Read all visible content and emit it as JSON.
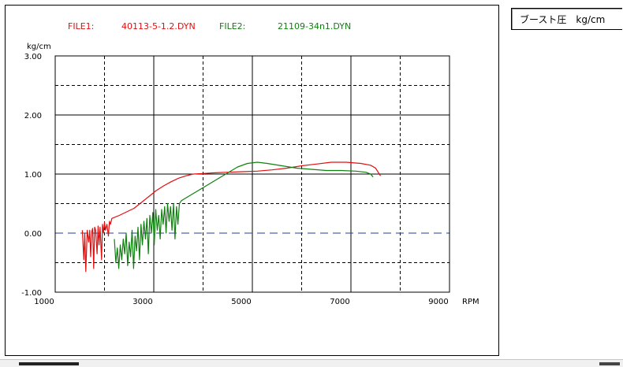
{
  "legend": {
    "file1_label": "FILE1:",
    "file1_name": "40113-5-1.2.DYN",
    "file2_label": "FILE2:",
    "file2_name": "21109-34n1.DYN"
  },
  "side_label": "ブースト圧　kg/cm",
  "chart_data": {
    "type": "line",
    "ylabel": "kg/cm",
    "xlabel": "RPM",
    "xlim": [
      1000,
      9000
    ],
    "ylim": [
      -1.0,
      3.0
    ],
    "x_ticks": [
      "1000",
      "3000",
      "5000",
      "7000",
      "9000"
    ],
    "y_ticks": [
      "3.00",
      "2.00",
      "1.00",
      "0.00",
      "-1.00"
    ],
    "grid": true,
    "zero_line_color": "#1f3fa0",
    "series": [
      {
        "name": "40113-5-1.2.DYN",
        "color": "#e01010",
        "points": [
          [
            1550,
            0.05
          ],
          [
            1580,
            -0.45
          ],
          [
            1600,
            0.0
          ],
          [
            1620,
            -0.65
          ],
          [
            1650,
            0.05
          ],
          [
            1680,
            -0.15
          ],
          [
            1700,
            0.05
          ],
          [
            1720,
            -0.4
          ],
          [
            1740,
            0.02
          ],
          [
            1760,
            0.08
          ],
          [
            1780,
            -0.6
          ],
          [
            1800,
            0.1
          ],
          [
            1820,
            0.05
          ],
          [
            1850,
            -0.35
          ],
          [
            1870,
            0.12
          ],
          [
            1890,
            -0.2
          ],
          [
            1910,
            0.1
          ],
          [
            1940,
            -0.45
          ],
          [
            1960,
            0.15
          ],
          [
            1980,
            0.0
          ],
          [
            2000,
            0.18
          ],
          [
            2020,
            0.05
          ],
          [
            2050,
            0.15
          ],
          [
            2080,
            -0.05
          ],
          [
            2100,
            0.2
          ],
          [
            2120,
            0.15
          ],
          [
            2150,
            0.25
          ],
          [
            2300,
            0.3
          ],
          [
            2450,
            0.36
          ],
          [
            2600,
            0.42
          ],
          [
            2750,
            0.52
          ],
          [
            2900,
            0.62
          ],
          [
            3050,
            0.72
          ],
          [
            3200,
            0.8
          ],
          [
            3350,
            0.87
          ],
          [
            3500,
            0.93
          ],
          [
            3650,
            0.97
          ],
          [
            3800,
            1.0
          ],
          [
            4000,
            1.01
          ],
          [
            4200,
            1.02
          ],
          [
            4500,
            1.03
          ],
          [
            4800,
            1.04
          ],
          [
            5100,
            1.05
          ],
          [
            5400,
            1.07
          ],
          [
            5700,
            1.1
          ],
          [
            6000,
            1.14
          ],
          [
            6300,
            1.17
          ],
          [
            6600,
            1.2
          ],
          [
            6900,
            1.2
          ],
          [
            7200,
            1.18
          ],
          [
            7400,
            1.15
          ],
          [
            7500,
            1.1
          ],
          [
            7600,
            0.97
          ]
        ]
      },
      {
        "name": "21109-34n1.DYN",
        "color": "#108010",
        "points": [
          [
            2200,
            -0.1
          ],
          [
            2230,
            -0.5
          ],
          [
            2260,
            -0.25
          ],
          [
            2290,
            -0.6
          ],
          [
            2320,
            -0.2
          ],
          [
            2350,
            -0.45
          ],
          [
            2380,
            -0.1
          ],
          [
            2410,
            -0.35
          ],
          [
            2440,
            0.0
          ],
          [
            2470,
            -0.55
          ],
          [
            2500,
            -0.15
          ],
          [
            2530,
            -0.4
          ],
          [
            2560,
            0.05
          ],
          [
            2590,
            -0.6
          ],
          [
            2620,
            -0.05
          ],
          [
            2650,
            -0.3
          ],
          [
            2680,
            0.1
          ],
          [
            2710,
            -0.45
          ],
          [
            2740,
            0.15
          ],
          [
            2770,
            -0.2
          ],
          [
            2800,
            0.2
          ],
          [
            2830,
            -0.1
          ],
          [
            2860,
            0.25
          ],
          [
            2890,
            -0.35
          ],
          [
            2920,
            0.3
          ],
          [
            2950,
            0.0
          ],
          [
            2980,
            0.35
          ],
          [
            3010,
            -0.2
          ],
          [
            3040,
            0.4
          ],
          [
            3070,
            0.05
          ],
          [
            3100,
            0.3
          ],
          [
            3130,
            -0.1
          ],
          [
            3160,
            0.4
          ],
          [
            3190,
            0.15
          ],
          [
            3220,
            0.45
          ],
          [
            3250,
            0.0
          ],
          [
            3280,
            0.5
          ],
          [
            3310,
            0.2
          ],
          [
            3340,
            0.45
          ],
          [
            3370,
            0.05
          ],
          [
            3400,
            0.5
          ],
          [
            3430,
            -0.1
          ],
          [
            3460,
            0.45
          ],
          [
            3490,
            0.15
          ],
          [
            3520,
            0.5
          ],
          [
            3560,
            0.55
          ],
          [
            3700,
            0.62
          ],
          [
            3900,
            0.72
          ],
          [
            4100,
            0.82
          ],
          [
            4300,
            0.92
          ],
          [
            4500,
            1.02
          ],
          [
            4700,
            1.12
          ],
          [
            4900,
            1.18
          ],
          [
            5100,
            1.2
          ],
          [
            5300,
            1.18
          ],
          [
            5600,
            1.14
          ],
          [
            5900,
            1.1
          ],
          [
            6200,
            1.08
          ],
          [
            6500,
            1.06
          ],
          [
            6800,
            1.06
          ],
          [
            7100,
            1.05
          ],
          [
            7300,
            1.03
          ],
          [
            7400,
            1.0
          ],
          [
            7450,
            0.95
          ]
        ]
      }
    ]
  }
}
